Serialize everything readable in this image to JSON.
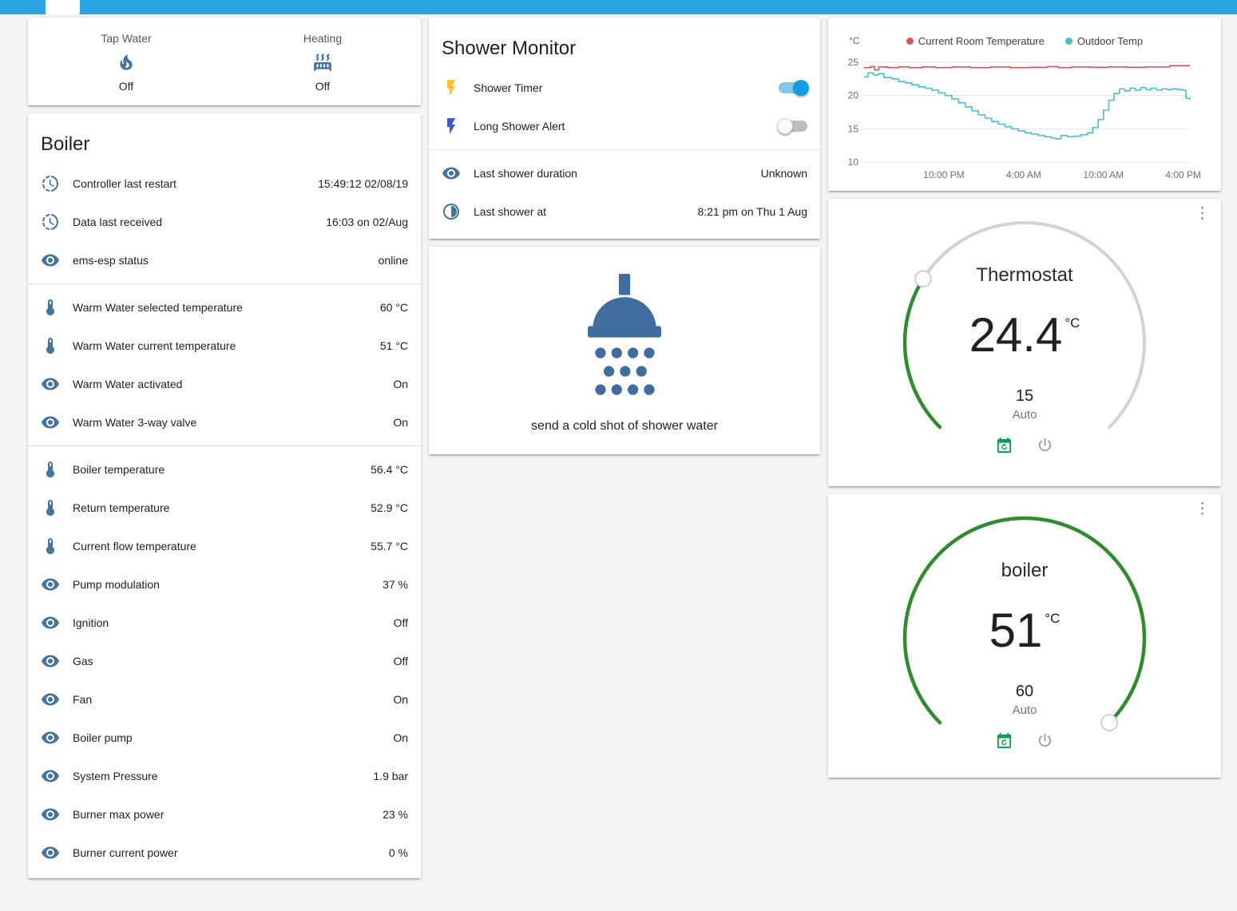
{
  "colors": {
    "topbar": "#2aa3e2",
    "row_icon": "#44739e",
    "toggle_on": "#129ce2",
    "lightning_yellow": "#fbc02d",
    "lightning_blue": "#3b5ccc",
    "chart_red": "#d9535a",
    "chart_teal": "#4bbec6",
    "gauge_green": "#2e8b2e",
    "gauge_track": "#d2d2d2",
    "shower_blue": "#3e6d9e",
    "calendar_green": "#0f9d58",
    "power_gray": "#9e9e9e"
  },
  "glance": {
    "items": [
      {
        "label": "Tap Water",
        "icon": "fire",
        "state": "Off"
      },
      {
        "label": "Heating",
        "icon": "radiator",
        "state": "Off"
      }
    ]
  },
  "boiler": {
    "title": "Boiler",
    "groups": [
      {
        "rows": [
          {
            "icon": "history",
            "label": "Controller last restart",
            "value": "15:49:12 02/08/19"
          },
          {
            "icon": "history",
            "label": "Data last received",
            "value": "16:03 on 02/Aug"
          },
          {
            "icon": "eye",
            "label": "ems-esp status",
            "value": "online"
          }
        ]
      },
      {
        "rows": [
          {
            "icon": "thermometer",
            "label": "Warm Water selected temperature",
            "value": "60 °C"
          },
          {
            "icon": "thermometer",
            "label": "Warm Water current temperature",
            "value": "51 °C"
          },
          {
            "icon": "eye",
            "label": "Warm Water activated",
            "value": "On"
          },
          {
            "icon": "eye",
            "label": "Warm Water 3-way valve",
            "value": "On"
          }
        ]
      },
      {
        "rows": [
          {
            "icon": "thermometer",
            "label": "Boiler temperature",
            "value": "56.4 °C"
          },
          {
            "icon": "thermometer",
            "label": "Return temperature",
            "value": "52.9 °C"
          },
          {
            "icon": "thermometer",
            "label": "Current flow temperature",
            "value": "55.7 °C"
          },
          {
            "icon": "eye",
            "label": "Pump modulation",
            "value": "37 %"
          },
          {
            "icon": "eye",
            "label": "Ignition",
            "value": "Off"
          },
          {
            "icon": "eye",
            "label": "Gas",
            "value": "Off"
          },
          {
            "icon": "eye",
            "label": "Fan",
            "value": "On"
          },
          {
            "icon": "eye",
            "label": "Boiler pump",
            "value": "On"
          },
          {
            "icon": "eye",
            "label": "System Pressure",
            "value": "1.9 bar"
          },
          {
            "icon": "eye",
            "label": "Burner max power",
            "value": "23 %"
          },
          {
            "icon": "eye",
            "label": "Burner current power",
            "value": "0 %"
          }
        ]
      }
    ]
  },
  "shower_monitor": {
    "title": "Shower Monitor",
    "toggles": [
      {
        "label": "Shower Timer",
        "icon": "flash",
        "icon_color": "yellow",
        "on": true
      },
      {
        "label": "Long Shower Alert",
        "icon": "flash",
        "icon_color": "blue",
        "on": false
      }
    ],
    "rows": [
      {
        "icon": "eye",
        "label": "Last shower duration",
        "value": "Unknown"
      },
      {
        "icon": "halfclock",
        "label": "Last shower at",
        "value": "8:21 pm on Thu 1 Aug"
      }
    ]
  },
  "shower_action": {
    "label": "send a cold shot of shower water"
  },
  "chart_data": {
    "type": "line",
    "title": "",
    "ylabel": "°C",
    "ylim": [
      10,
      25
    ],
    "yticks": [
      25,
      20,
      15,
      10
    ],
    "grid": "horizontal",
    "legend_position": "top-center",
    "x_hours_range": [
      0,
      24.5
    ],
    "xticks": [
      {
        "h": 6,
        "label": "10:00 PM"
      },
      {
        "h": 12,
        "label": "4:00 AM"
      },
      {
        "h": 18,
        "label": "10:00 AM"
      },
      {
        "h": 24,
        "label": "4:00 PM"
      }
    ],
    "series": [
      {
        "name": "Current Room Temperature",
        "color": "#d9535a",
        "step": true,
        "points": [
          [
            0,
            24.2
          ],
          [
            0.5,
            24.35
          ],
          [
            0.8,
            23.85
          ],
          [
            1.1,
            24.3
          ],
          [
            1.8,
            24.2
          ],
          [
            2.6,
            24.3
          ],
          [
            3.4,
            24.2
          ],
          [
            4.4,
            24.3
          ],
          [
            5.4,
            24.2
          ],
          [
            6.6,
            24.3
          ],
          [
            8.0,
            24.2
          ],
          [
            9.5,
            24.3
          ],
          [
            11.0,
            24.2
          ],
          [
            12.5,
            24.25
          ],
          [
            13.8,
            24.35
          ],
          [
            14.6,
            24.2
          ],
          [
            15.6,
            24.3
          ],
          [
            17.0,
            24.25
          ],
          [
            18.4,
            24.3
          ],
          [
            19.8,
            24.25
          ],
          [
            21.2,
            24.3
          ],
          [
            22.4,
            24.3
          ],
          [
            23.0,
            24.5
          ],
          [
            24.5,
            24.5
          ]
        ]
      },
      {
        "name": "Outdoor Temp",
        "color": "#4bbec6",
        "step": true,
        "points": [
          [
            0,
            22.8
          ],
          [
            0.3,
            23.4
          ],
          [
            0.7,
            23.1
          ],
          [
            1.1,
            23.3
          ],
          [
            1.5,
            22.7
          ],
          [
            2.1,
            22.5
          ],
          [
            2.6,
            22.1
          ],
          [
            3.1,
            21.9
          ],
          [
            3.6,
            21.6
          ],
          [
            4.1,
            21.3
          ],
          [
            4.6,
            21.1
          ],
          [
            5.1,
            20.8
          ],
          [
            5.6,
            20.4
          ],
          [
            6.1,
            20.0
          ],
          [
            6.6,
            19.5
          ],
          [
            7.1,
            18.9
          ],
          [
            7.6,
            18.3
          ],
          [
            8.1,
            17.7
          ],
          [
            8.6,
            17.1
          ],
          [
            9.1,
            16.6
          ],
          [
            9.6,
            16.1
          ],
          [
            10.1,
            15.7
          ],
          [
            10.6,
            15.3
          ],
          [
            11.1,
            15.0
          ],
          [
            11.6,
            14.7
          ],
          [
            12.1,
            14.4
          ],
          [
            12.6,
            14.2
          ],
          [
            13.1,
            14.0
          ],
          [
            13.6,
            13.8
          ],
          [
            14.1,
            13.6
          ],
          [
            14.4,
            13.5
          ],
          [
            14.8,
            14.0
          ],
          [
            15.3,
            13.8
          ],
          [
            15.8,
            13.9
          ],
          [
            16.3,
            14.1
          ],
          [
            16.8,
            14.4
          ],
          [
            17.2,
            15.2
          ],
          [
            17.6,
            16.4
          ],
          [
            18.0,
            17.8
          ],
          [
            18.4,
            19.3
          ],
          [
            18.8,
            20.3
          ],
          [
            19.2,
            21.0
          ],
          [
            19.6,
            20.7
          ],
          [
            20.0,
            21.1
          ],
          [
            20.4,
            20.8
          ],
          [
            20.8,
            21.2
          ],
          [
            21.2,
            20.9
          ],
          [
            21.6,
            21.1
          ],
          [
            22.0,
            20.8
          ],
          [
            22.4,
            21.0
          ],
          [
            22.8,
            20.9
          ],
          [
            23.2,
            21.0
          ],
          [
            23.6,
            20.9
          ],
          [
            24.0,
            20.8
          ],
          [
            24.2,
            19.6
          ],
          [
            24.5,
            19.4
          ]
        ]
      }
    ]
  },
  "thermostat": {
    "title": "Thermostat",
    "value": "24.4",
    "unit": "°C",
    "setpoint": "15",
    "mode": "Auto",
    "slider_min": 5,
    "slider_max": 40,
    "slider_value": 15
  },
  "boiler_gauge": {
    "title": "boiler",
    "value": "51",
    "unit": "°C",
    "setpoint": "60",
    "mode": "Auto",
    "slider_min": 0,
    "slider_max": 60,
    "slider_value": 60
  }
}
